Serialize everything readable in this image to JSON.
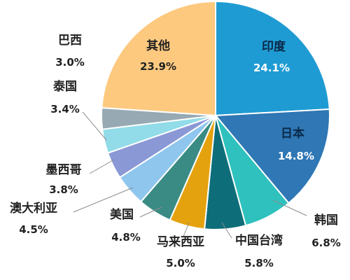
{
  "chart_data": {
    "type": "pie",
    "title": "",
    "slices": [
      {
        "label": "印度",
        "value": 24.1,
        "display": "24.1%",
        "color": "#1f9bd3"
      },
      {
        "label": "日本",
        "value": 14.8,
        "display": "14.8%",
        "color": "#2f77b5"
      },
      {
        "label": "韩国",
        "value": 6.8,
        "display": "6.8%",
        "color": "#2ec1bd"
      },
      {
        "label": "中国台湾",
        "value": 5.8,
        "display": "5.8%",
        "color": "#0d6e7a"
      },
      {
        "label": "马来西亚",
        "value": 5.0,
        "display": "5.0%",
        "color": "#e5a20f"
      },
      {
        "label": "美国",
        "value": 4.8,
        "display": "4.8%",
        "color": "#3a8b84"
      },
      {
        "label": "澳大利亚",
        "value": 4.5,
        "display": "4.5%",
        "color": "#8fc6ee"
      },
      {
        "label": "墨西哥",
        "value": 3.8,
        "display": "3.8%",
        "color": "#8a98d6"
      },
      {
        "label": "泰国",
        "value": 3.4,
        "display": "3.4%",
        "color": "#91dce8"
      },
      {
        "label": "巴西",
        "value": 3.0,
        "display": "3.0%",
        "color": "#97a9b2"
      },
      {
        "label": "其他",
        "value": 23.9,
        "display": "23.9%",
        "color": "#fdc97f"
      }
    ]
  }
}
